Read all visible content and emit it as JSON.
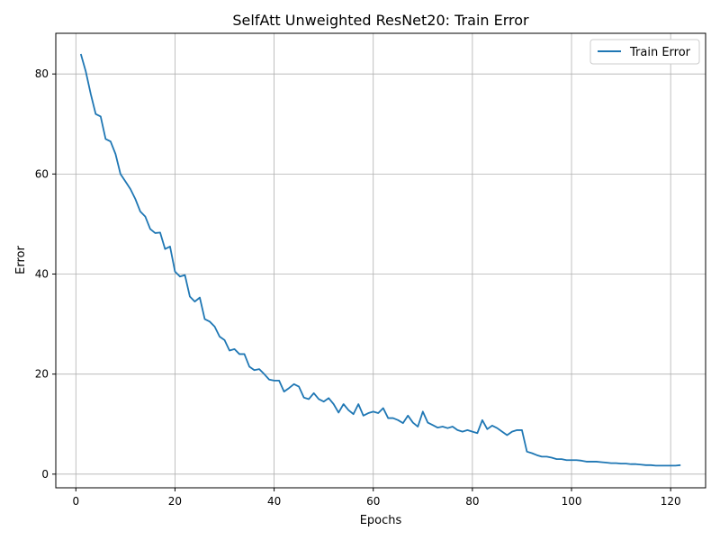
{
  "chart_data": {
    "type": "line",
    "title": "SelfAtt Unweighted ResNet20: Train Error",
    "xlabel": "Epochs",
    "ylabel": "Error",
    "xlim": [
      -4.05,
      127.05
    ],
    "ylim": [
      -2.73,
      88.13
    ],
    "xticks": [
      0,
      20,
      40,
      60,
      80,
      100,
      120
    ],
    "yticks": [
      0,
      20,
      40,
      60,
      80
    ],
    "grid": true,
    "legend_position": "top-right",
    "series": [
      {
        "name": "Train Error",
        "color": "#1f77b4",
        "x": [
          1,
          2,
          3,
          4,
          5,
          6,
          7,
          8,
          9,
          10,
          11,
          12,
          13,
          14,
          15,
          16,
          17,
          18,
          19,
          20,
          21,
          22,
          23,
          24,
          25,
          26,
          27,
          28,
          29,
          30,
          31,
          32,
          33,
          34,
          35,
          36,
          37,
          38,
          39,
          40,
          41,
          42,
          43,
          44,
          45,
          46,
          47,
          48,
          49,
          50,
          51,
          52,
          53,
          54,
          55,
          56,
          57,
          58,
          59,
          60,
          61,
          62,
          63,
          64,
          65,
          66,
          67,
          68,
          69,
          70,
          71,
          72,
          73,
          74,
          75,
          76,
          77,
          78,
          79,
          80,
          81,
          82,
          83,
          84,
          85,
          86,
          87,
          88,
          89,
          90,
          91,
          92,
          93,
          94,
          95,
          96,
          97,
          98,
          99,
          100,
          101,
          102,
          103,
          104,
          105,
          106,
          107,
          108,
          109,
          110,
          111,
          112,
          113,
          114,
          115,
          116,
          117,
          118,
          119,
          120,
          121,
          122
        ],
        "values": [
          84.0,
          80.5,
          76.0,
          72.0,
          71.5,
          67.0,
          66.5,
          64.0,
          60.0,
          58.5,
          57.0,
          55.0,
          52.5,
          51.5,
          49.0,
          48.2,
          48.3,
          45.0,
          45.5,
          40.5,
          39.5,
          39.8,
          35.5,
          34.5,
          35.3,
          31.0,
          30.5,
          29.5,
          27.5,
          26.8,
          24.7,
          25.0,
          24.0,
          24.0,
          21.5,
          20.8,
          21.0,
          20.0,
          18.9,
          18.7,
          18.7,
          16.5,
          17.2,
          18.0,
          17.5,
          15.3,
          15.0,
          16.2,
          15.0,
          14.5,
          15.2,
          14.0,
          12.3,
          14.0,
          12.8,
          12.0,
          14.0,
          11.7,
          12.2,
          12.5,
          12.2,
          13.2,
          11.2,
          11.2,
          10.8,
          10.2,
          11.7,
          10.3,
          9.5,
          12.5,
          10.3,
          9.8,
          9.3,
          9.5,
          9.2,
          9.5,
          8.8,
          8.5,
          8.8,
          8.5,
          8.2,
          10.8,
          9.0,
          9.7,
          9.2,
          8.5,
          7.8,
          8.5,
          8.8,
          8.8,
          4.5,
          4.2,
          3.8,
          3.5,
          3.5,
          3.3,
          3.0,
          3.0,
          2.8,
          2.8,
          2.8,
          2.7,
          2.5,
          2.5,
          2.5,
          2.4,
          2.3,
          2.2,
          2.2,
          2.1,
          2.1,
          2.0,
          2.0,
          1.9,
          1.8,
          1.8,
          1.7,
          1.7,
          1.7,
          1.7,
          1.7,
          1.8
        ]
      }
    ]
  }
}
